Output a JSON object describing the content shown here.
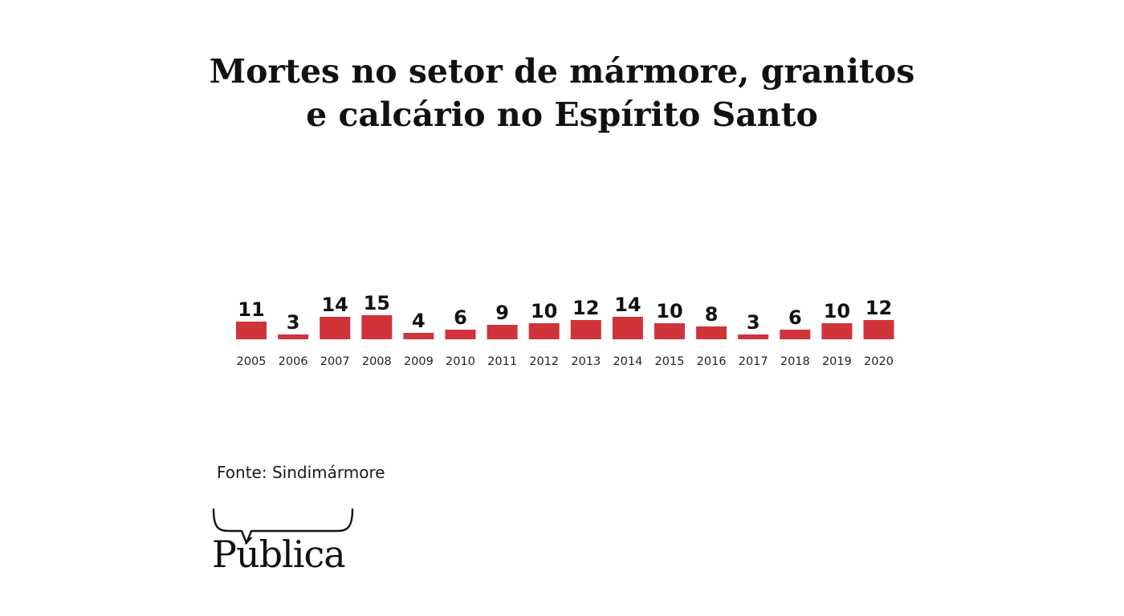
{
  "chart_data": {
    "type": "bar",
    "title_lines": [
      "Mortes no setor de mármore, granitos",
      "e calcário no Espírito Santo"
    ],
    "categories": [
      "2005",
      "2006",
      "2007",
      "2008",
      "2009",
      "2010",
      "2011",
      "2012",
      "2013",
      "2014",
      "2015",
      "2016",
      "2017",
      "2018",
      "2019",
      "2020"
    ],
    "values": [
      11,
      3,
      14,
      15,
      4,
      6,
      9,
      10,
      12,
      14,
      10,
      8,
      3,
      6,
      10,
      12
    ],
    "data_labels": [
      "11",
      "3",
      "14",
      "15",
      "4",
      "6",
      "9",
      "10",
      "12",
      "14",
      "10",
      "8",
      "3",
      "6",
      "10",
      "12"
    ],
    "xlabel": "",
    "ylabel": "",
    "ylim": [
      0,
      15
    ],
    "grid": false,
    "legend": "none",
    "bar_color": "#d0333a"
  },
  "source": "Fonte: Sindimármore",
  "logo": {
    "text": "Pública",
    "icon": "speech-brace-icon"
  }
}
